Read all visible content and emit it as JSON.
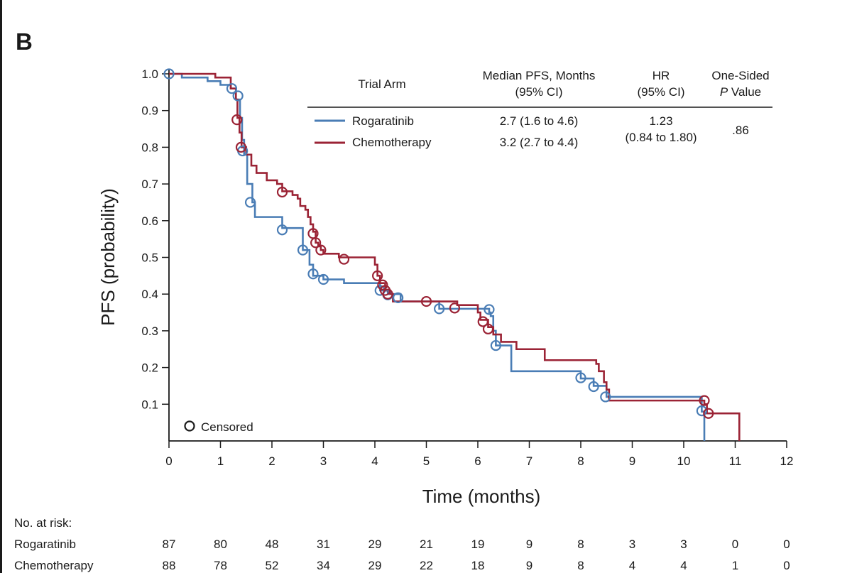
{
  "panel_label": "B",
  "chart_data": {
    "type": "line",
    "subtype": "kaplan-meier-step",
    "xlabel": "Time (months)",
    "ylabel": "PFS (probability)",
    "xlim": [
      0,
      12
    ],
    "ylim": [
      0,
      1.0
    ],
    "x_ticks": [
      0,
      1,
      2,
      3,
      4,
      5,
      6,
      7,
      8,
      9,
      10,
      11,
      12
    ],
    "y_ticks": [
      0.1,
      0.2,
      0.3,
      0.4,
      0.5,
      0.6,
      0.7,
      0.8,
      0.9,
      1.0
    ],
    "y_tick_labels": [
      "0.1",
      "0.2",
      "0.3",
      "0.4",
      "0.5",
      "0.6",
      "0.7",
      "0.8",
      "0.9",
      "1.0"
    ],
    "series": [
      {
        "name": "Rogaratinib",
        "color": "#4a7db5",
        "steps": [
          [
            0,
            1.0
          ],
          [
            0.25,
            0.99
          ],
          [
            0.75,
            0.98
          ],
          [
            1.0,
            0.97
          ],
          [
            1.2,
            0.96
          ],
          [
            1.3,
            0.93
          ],
          [
            1.38,
            0.88
          ],
          [
            1.42,
            0.82
          ],
          [
            1.46,
            0.78
          ],
          [
            1.52,
            0.7
          ],
          [
            1.62,
            0.65
          ],
          [
            1.67,
            0.61
          ],
          [
            2.2,
            0.58
          ],
          [
            2.6,
            0.52
          ],
          [
            2.73,
            0.48
          ],
          [
            2.8,
            0.45
          ],
          [
            3.0,
            0.44
          ],
          [
            3.4,
            0.43
          ],
          [
            4.1,
            0.41
          ],
          [
            4.25,
            0.4
          ],
          [
            4.5,
            0.38
          ],
          [
            5.25,
            0.36
          ],
          [
            6.22,
            0.35
          ],
          [
            6.25,
            0.34
          ],
          [
            6.3,
            0.3
          ],
          [
            6.35,
            0.26
          ],
          [
            6.65,
            0.19
          ],
          [
            7.6,
            0.19
          ],
          [
            8.0,
            0.17
          ],
          [
            8.25,
            0.15
          ],
          [
            8.5,
            0.12
          ],
          [
            10.35,
            0.08
          ],
          [
            10.4,
            0.0
          ]
        ],
        "censored": [
          [
            0,
            1.0
          ],
          [
            1.22,
            0.96
          ],
          [
            1.34,
            0.94
          ],
          [
            1.43,
            0.79
          ],
          [
            1.58,
            0.65
          ],
          [
            2.2,
            0.575
          ],
          [
            2.6,
            0.52
          ],
          [
            2.8,
            0.455
          ],
          [
            3.0,
            0.44
          ],
          [
            4.1,
            0.41
          ],
          [
            4.25,
            0.398
          ],
          [
            4.45,
            0.39
          ],
          [
            5.25,
            0.36
          ],
          [
            6.22,
            0.358
          ],
          [
            6.35,
            0.26
          ],
          [
            8.0,
            0.172
          ],
          [
            8.25,
            0.148
          ],
          [
            8.48,
            0.12
          ],
          [
            10.35,
            0.082
          ]
        ]
      },
      {
        "name": "Chemotherapy",
        "color": "#9b2335",
        "steps": [
          [
            0,
            1.0
          ],
          [
            0.9,
            0.99
          ],
          [
            1.2,
            0.96
          ],
          [
            1.3,
            0.93
          ],
          [
            1.33,
            0.88
          ],
          [
            1.37,
            0.84
          ],
          [
            1.41,
            0.8
          ],
          [
            1.5,
            0.78
          ],
          [
            1.6,
            0.75
          ],
          [
            1.7,
            0.73
          ],
          [
            1.9,
            0.71
          ],
          [
            2.1,
            0.7
          ],
          [
            2.2,
            0.68
          ],
          [
            2.4,
            0.67
          ],
          [
            2.5,
            0.66
          ],
          [
            2.55,
            0.64
          ],
          [
            2.65,
            0.63
          ],
          [
            2.7,
            0.61
          ],
          [
            2.75,
            0.59
          ],
          [
            2.8,
            0.57
          ],
          [
            2.85,
            0.54
          ],
          [
            2.9,
            0.53
          ],
          [
            2.95,
            0.52
          ],
          [
            3.0,
            0.51
          ],
          [
            3.3,
            0.5
          ],
          [
            4.0,
            0.48
          ],
          [
            4.05,
            0.45
          ],
          [
            4.1,
            0.43
          ],
          [
            4.2,
            0.41
          ],
          [
            4.3,
            0.4
          ],
          [
            4.35,
            0.38
          ],
          [
            5.6,
            0.37
          ],
          [
            6.0,
            0.35
          ],
          [
            6.05,
            0.33
          ],
          [
            6.2,
            0.31
          ],
          [
            6.3,
            0.29
          ],
          [
            6.45,
            0.27
          ],
          [
            6.75,
            0.25
          ],
          [
            7.3,
            0.22
          ],
          [
            8.3,
            0.21
          ],
          [
            8.35,
            0.19
          ],
          [
            8.45,
            0.16
          ],
          [
            8.5,
            0.14
          ],
          [
            8.55,
            0.11
          ],
          [
            10.4,
            0.1
          ],
          [
            10.45,
            0.075
          ],
          [
            11.05,
            0.075
          ],
          [
            11.08,
            0.0
          ]
        ],
        "censored": [
          [
            1.32,
            0.875
          ],
          [
            1.4,
            0.8
          ],
          [
            2.2,
            0.678
          ],
          [
            2.8,
            0.565
          ],
          [
            2.85,
            0.54
          ],
          [
            2.95,
            0.52
          ],
          [
            3.4,
            0.495
          ],
          [
            4.05,
            0.45
          ],
          [
            4.15,
            0.425
          ],
          [
            4.2,
            0.41
          ],
          [
            4.25,
            0.4
          ],
          [
            5.0,
            0.38
          ],
          [
            5.55,
            0.362
          ],
          [
            6.1,
            0.325
          ],
          [
            6.2,
            0.305
          ],
          [
            10.4,
            0.11
          ],
          [
            10.48,
            0.075
          ]
        ]
      }
    ],
    "legend_table": {
      "headers": {
        "arm": "Trial Arm",
        "median_1": "Median PFS, Months",
        "median_2": "(95% CI)",
        "hr_1": "HR",
        "hr_2": "(95% CI)",
        "p_1": "One-Sided",
        "p_2_italic": "P",
        "p_2_rest": " Value"
      },
      "rows": [
        {
          "arm": "Rogaratinib",
          "median": "2.7 (1.6 to 4.6)"
        },
        {
          "arm": "Chemotherapy",
          "median": "3.2 (2.7 to 4.4)"
        }
      ],
      "hr_value": "1.23",
      "hr_ci": "(0.84 to 1.80)",
      "p_value": ".86"
    },
    "censored_legend": "Censored"
  },
  "risk_table": {
    "title": "No. at risk:",
    "rows": [
      {
        "label": "Rogaratinib",
        "values": [
          "87",
          "80",
          "48",
          "31",
          "29",
          "21",
          "19",
          "9",
          "8",
          "3",
          "3",
          "0",
          "0"
        ]
      },
      {
        "label": "Chemotherapy",
        "values": [
          "88",
          "78",
          "52",
          "34",
          "29",
          "22",
          "18",
          "9",
          "8",
          "4",
          "4",
          "1",
          "0"
        ]
      }
    ]
  }
}
